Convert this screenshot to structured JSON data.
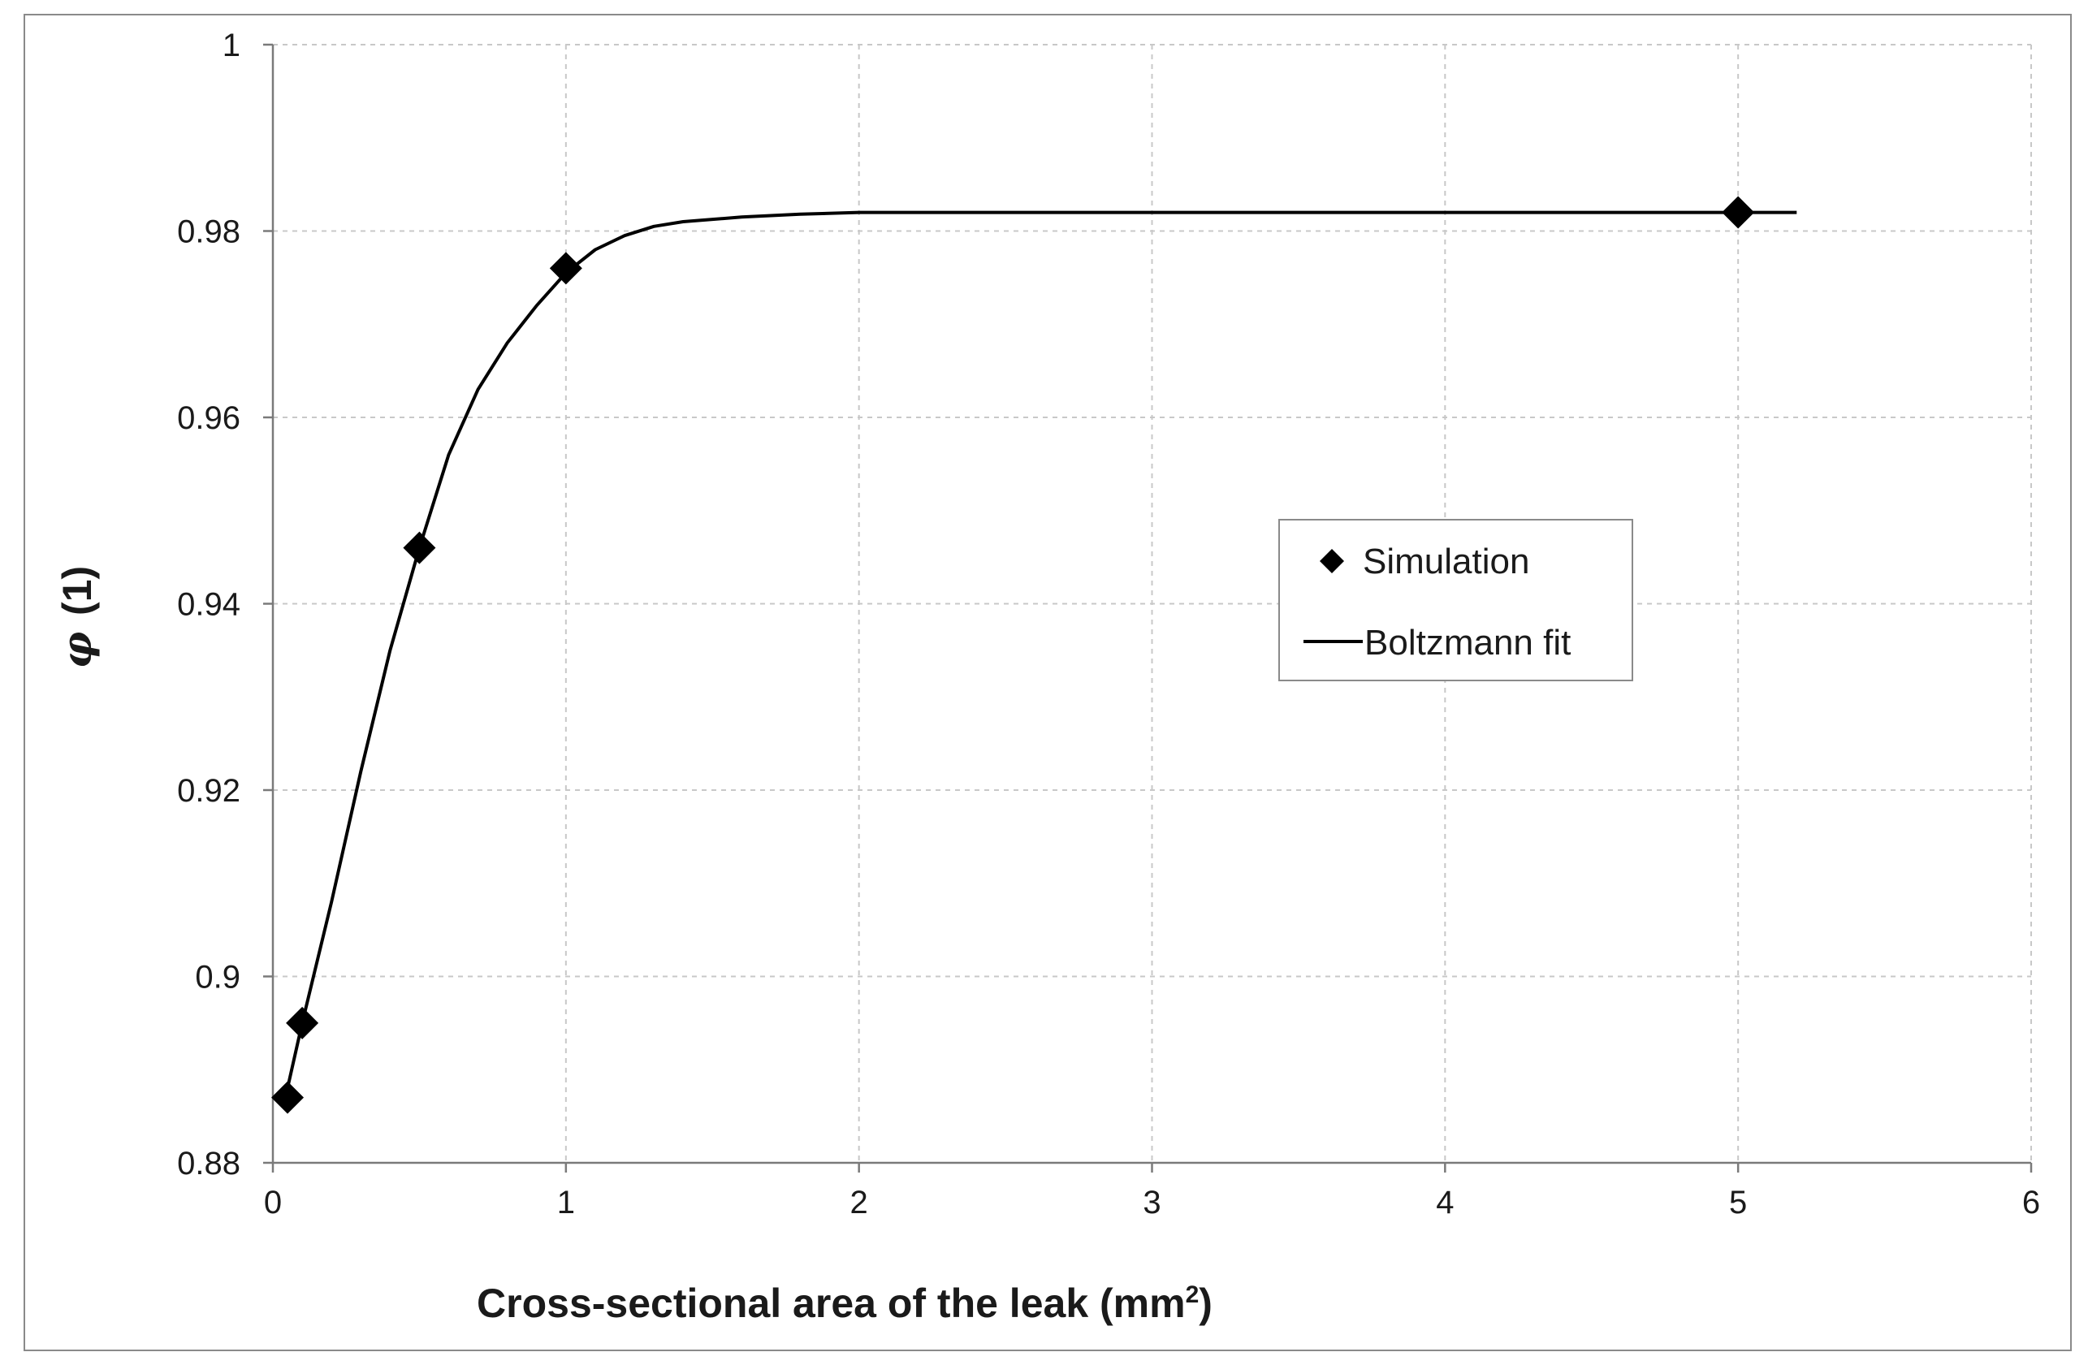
{
  "chart_data": {
    "type": "scatter",
    "xlabel_main": "Cross-sectional area of the leak  (mm",
    "xlabel_sup": "2",
    "xlabel_end": ")",
    "ylabel_symbol": "φ",
    "ylabel_unit": "(1)",
    "xlim": [
      0,
      6
    ],
    "ylim": [
      0.88,
      1.0
    ],
    "xticks": [
      0,
      1,
      2,
      3,
      4,
      5,
      6
    ],
    "xtick_labels": [
      "0",
      "1",
      "2",
      "3",
      "4",
      "5",
      "6"
    ],
    "yticks": [
      0.88,
      0.9,
      0.92,
      0.94,
      0.96,
      0.98,
      1.0
    ],
    "ytick_labels": [
      "0.88",
      "0.9",
      "0.92",
      "0.94",
      "0.96",
      "0.98",
      "1"
    ],
    "grid": true,
    "legend_position": "center-right",
    "series": [
      {
        "name": "Simulation",
        "kind": "scatter",
        "marker": "diamond",
        "color": "#000000",
        "x": [
          0.05,
          0.1,
          0.5,
          1.0,
          5.0
        ],
        "y": [
          0.887,
          0.895,
          0.946,
          0.976,
          0.982
        ]
      },
      {
        "name": "Boltzmann fit",
        "kind": "line",
        "color": "#000000",
        "x": [
          0.05,
          0.1,
          0.2,
          0.3,
          0.4,
          0.5,
          0.6,
          0.7,
          0.8,
          0.9,
          1.0,
          1.1,
          1.2,
          1.3,
          1.4,
          1.6,
          1.8,
          2.0,
          2.5,
          3.0,
          4.0,
          5.0,
          5.2
        ],
        "y": [
          0.888,
          0.895,
          0.908,
          0.922,
          0.935,
          0.946,
          0.956,
          0.963,
          0.968,
          0.972,
          0.9755,
          0.978,
          0.9795,
          0.9805,
          0.981,
          0.9815,
          0.9818,
          0.982,
          0.982,
          0.982,
          0.982,
          0.982,
          0.982
        ]
      }
    ]
  }
}
